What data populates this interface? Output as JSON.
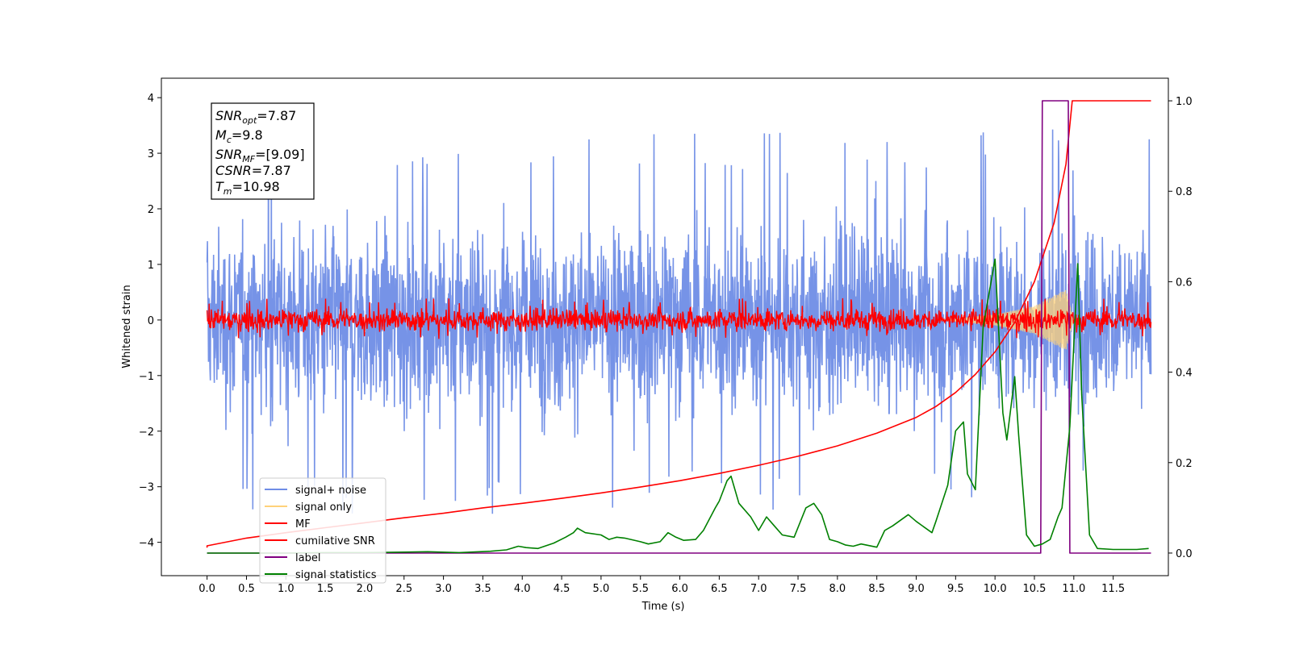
{
  "chart_data": {
    "type": "line",
    "title": "",
    "xlabel": "Time (s)",
    "ylabel": "Whitened strain",
    "y2label": "",
    "xlim": [
      -0.58,
      12.2
    ],
    "ylim": [
      -4.6,
      4.35
    ],
    "y2lim": [
      -0.05,
      1.05
    ],
    "x_ticks": [
      0.0,
      0.5,
      1.0,
      1.5,
      2.0,
      2.5,
      3.0,
      3.5,
      4.0,
      4.5,
      5.0,
      5.5,
      6.0,
      6.5,
      7.0,
      7.5,
      8.0,
      8.5,
      9.0,
      9.5,
      10.0,
      10.5,
      11.0,
      11.5
    ],
    "x_tick_labels": [
      "0.0",
      "0.5",
      "1.0",
      "1.5",
      "2.0",
      "2.5",
      "3.0",
      "3.5",
      "4.0",
      "4.5",
      "5.0",
      "5.5",
      "6.0",
      "6.5",
      "7.0",
      "7.5",
      "8.0",
      "8.5",
      "9.0",
      "9.5",
      "10.0",
      "10.5",
      "11.0",
      "11.5"
    ],
    "y_ticks": [
      -4,
      -3,
      -2,
      -1,
      0,
      1,
      2,
      3,
      4
    ],
    "y_tick_labels": [
      "−4",
      "−3",
      "−2",
      "−1",
      "0",
      "1",
      "2",
      "3",
      "4"
    ],
    "y2_ticks": [
      0.0,
      0.2,
      0.4,
      0.6,
      0.8,
      1.0
    ],
    "y2_tick_labels": [
      "0.0",
      "0.2",
      "0.4",
      "0.6",
      "0.8",
      "1.0"
    ],
    "grid": false,
    "legend_position": "lower-left",
    "annotation": {
      "lines": [
        {
          "main": "SNR",
          "sub": "opt",
          "value": "=7.87"
        },
        {
          "main": "M",
          "sub": "c",
          "value": "=9.8"
        },
        {
          "main": "SNR",
          "sub": "MF",
          "value": "=[9.09]"
        },
        {
          "main": "CSNR",
          "sub": "",
          "value": "=7.87"
        },
        {
          "main": "T",
          "sub": "m",
          "value": "=10.98"
        }
      ]
    },
    "series": [
      {
        "name": "signal+ noise",
        "axis": "left",
        "color": "#6f8de6",
        "kind": "noise-band",
        "x_range": [
          0.0,
          11.98
        ],
        "envelope": [
          [
            0.0,
            2.0
          ],
          [
            11.98,
            2.0
          ]
        ],
        "peak_range": [
          -3.5,
          3.5
        ]
      },
      {
        "name": "signal only",
        "axis": "left",
        "color": "#ffd27a",
        "kind": "chirp",
        "x_range": [
          9.3,
          11.0
        ],
        "envelope": [
          [
            9.3,
            0.0
          ],
          [
            10.0,
            0.1
          ],
          [
            10.5,
            0.25
          ],
          [
            10.9,
            0.55
          ],
          [
            11.0,
            0.0
          ]
        ]
      },
      {
        "name": "MF",
        "axis": "left",
        "color": "#ff0000",
        "kind": "noise-band",
        "x_range": [
          0.0,
          11.98
        ],
        "envelope": [
          [
            0.0,
            0.25
          ],
          [
            11.98,
            0.25
          ]
        ],
        "peak_range": [
          -0.35,
          0.4
        ]
      },
      {
        "name": "cumilative SNR",
        "axis": "right",
        "color": "#ff0000",
        "kind": "line",
        "x": [
          0.0,
          0.0,
          0.5,
          1.0,
          1.5,
          2.0,
          2.5,
          3.0,
          3.5,
          4.0,
          4.5,
          5.0,
          5.5,
          6.0,
          6.5,
          7.0,
          7.5,
          8.0,
          8.5,
          9.0,
          9.25,
          9.5,
          9.75,
          10.0,
          10.25,
          10.5,
          10.75,
          10.9,
          10.98,
          11.98
        ],
        "y": [
          0.012,
          0.016,
          0.033,
          0.045,
          0.056,
          0.067,
          0.078,
          0.088,
          0.1,
          0.11,
          0.121,
          0.133,
          0.146,
          0.16,
          0.176,
          0.194,
          0.214,
          0.237,
          0.265,
          0.3,
          0.324,
          0.355,
          0.395,
          0.445,
          0.51,
          0.6,
          0.73,
          0.86,
          1.0,
          1.0
        ]
      },
      {
        "name": "label",
        "axis": "right",
        "color": "#800080",
        "kind": "line",
        "x": [
          0.0,
          10.58,
          10.6,
          10.93,
          10.95,
          11.98
        ],
        "y": [
          0.0,
          0.0,
          1.0,
          1.0,
          0.0,
          0.0
        ]
      },
      {
        "name": "signal statistics",
        "axis": "right",
        "color": "#008000",
        "kind": "line",
        "x": [
          0.0,
          0.5,
          1.0,
          1.5,
          2.0,
          2.5,
          2.8,
          3.2,
          3.6,
          3.8,
          3.95,
          4.05,
          4.2,
          4.4,
          4.55,
          4.65,
          4.7,
          4.8,
          5.0,
          5.1,
          5.2,
          5.3,
          5.5,
          5.6,
          5.75,
          5.85,
          5.95,
          6.05,
          6.2,
          6.3,
          6.45,
          6.5,
          6.6,
          6.65,
          6.75,
          6.9,
          7.0,
          7.05,
          7.1,
          7.2,
          7.3,
          7.45,
          7.6,
          7.7,
          7.8,
          7.9,
          8.0,
          8.1,
          8.2,
          8.3,
          8.5,
          8.6,
          8.7,
          8.9,
          9.0,
          9.2,
          9.25,
          9.4,
          9.5,
          9.6,
          9.65,
          9.75,
          9.85,
          9.95,
          10.0,
          10.1,
          10.15,
          10.25,
          10.3,
          10.4,
          10.5,
          10.6,
          10.7,
          10.8,
          10.85,
          10.95,
          11.05,
          11.1,
          11.2,
          11.3,
          11.5,
          11.8,
          11.95
        ],
        "y": [
          0.0,
          0.0,
          0.0,
          0.001,
          0.001,
          0.002,
          0.003,
          0.001,
          0.004,
          0.007,
          0.015,
          0.012,
          0.01,
          0.022,
          0.035,
          0.045,
          0.055,
          0.045,
          0.04,
          0.03,
          0.035,
          0.033,
          0.025,
          0.02,
          0.025,
          0.045,
          0.035,
          0.028,
          0.03,
          0.05,
          0.1,
          0.115,
          0.16,
          0.17,
          0.11,
          0.08,
          0.05,
          0.065,
          0.08,
          0.06,
          0.04,
          0.035,
          0.1,
          0.11,
          0.085,
          0.03,
          0.025,
          0.018,
          0.015,
          0.02,
          0.013,
          0.05,
          0.06,
          0.085,
          0.07,
          0.045,
          0.07,
          0.15,
          0.27,
          0.29,
          0.175,
          0.14,
          0.5,
          0.6,
          0.65,
          0.31,
          0.25,
          0.39,
          0.26,
          0.04,
          0.015,
          0.02,
          0.03,
          0.08,
          0.1,
          0.28,
          0.64,
          0.35,
          0.04,
          0.01,
          0.008,
          0.008,
          0.01
        ]
      }
    ]
  }
}
